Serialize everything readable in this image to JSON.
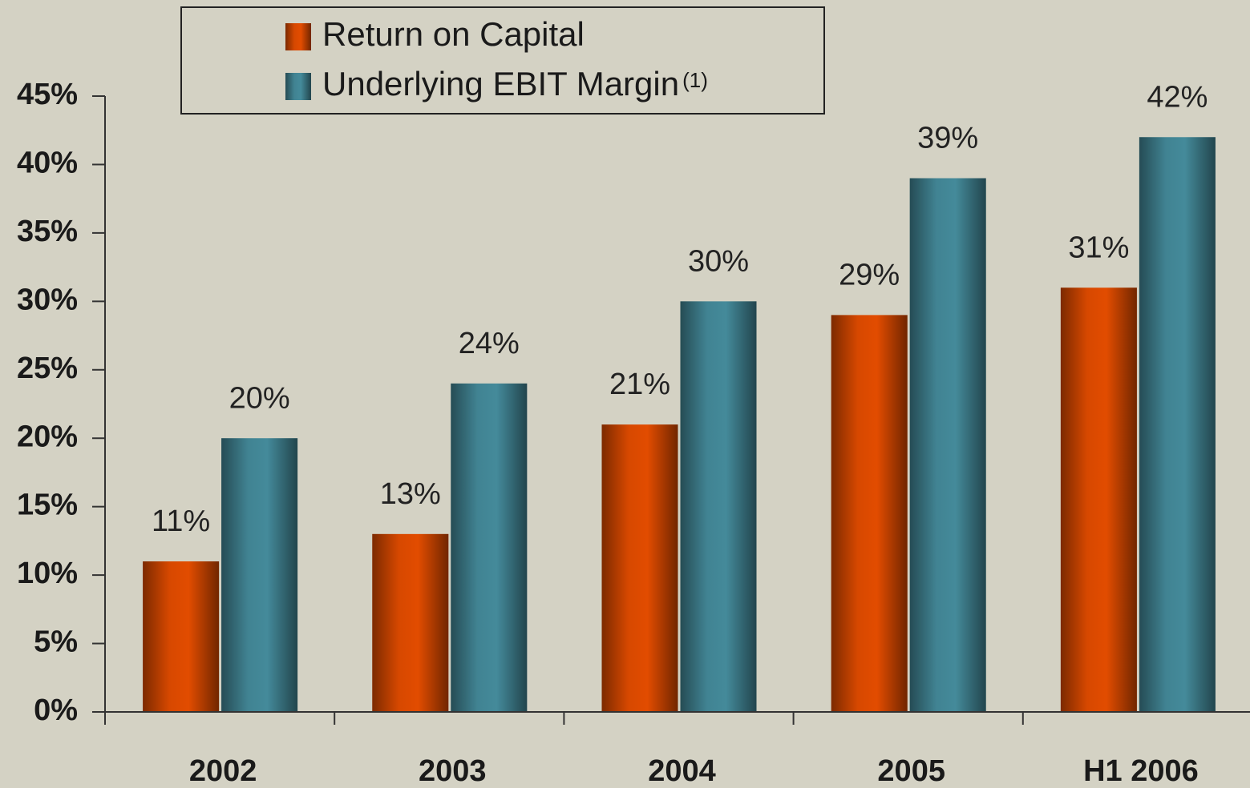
{
  "chart_data": {
    "type": "bar",
    "categories": [
      "2002",
      "2003",
      "2004",
      "2005",
      "H1 2006"
    ],
    "series": [
      {
        "name": "Return on Capital",
        "color": "#e24c00",
        "values": [
          11,
          13,
          21,
          29,
          31
        ],
        "value_labels": [
          "11%",
          "13%",
          "21%",
          "29%",
          "31%"
        ]
      },
      {
        "name": "Underlying EBIT Margin",
        "footnote_marker": "(1)",
        "color": "#448a9a",
        "values": [
          20,
          24,
          30,
          39,
          42
        ],
        "value_labels": [
          "20%",
          "24%",
          "30%",
          "39%",
          "42%"
        ]
      }
    ],
    "ylim": [
      0,
      45
    ],
    "yticks": [
      {
        "value": 0,
        "label": "0%"
      },
      {
        "value": 5,
        "label": "5%"
      },
      {
        "value": 10,
        "label": "10%"
      },
      {
        "value": 15,
        "label": "15%"
      },
      {
        "value": 20,
        "label": "20%"
      },
      {
        "value": 25,
        "label": "25%"
      },
      {
        "value": 30,
        "label": "30%"
      },
      {
        "value": 35,
        "label": "35%"
      },
      {
        "value": 40,
        "label": "40%"
      },
      {
        "value": 45,
        "label": "45%"
      }
    ],
    "grid": false,
    "legend": "top"
  }
}
